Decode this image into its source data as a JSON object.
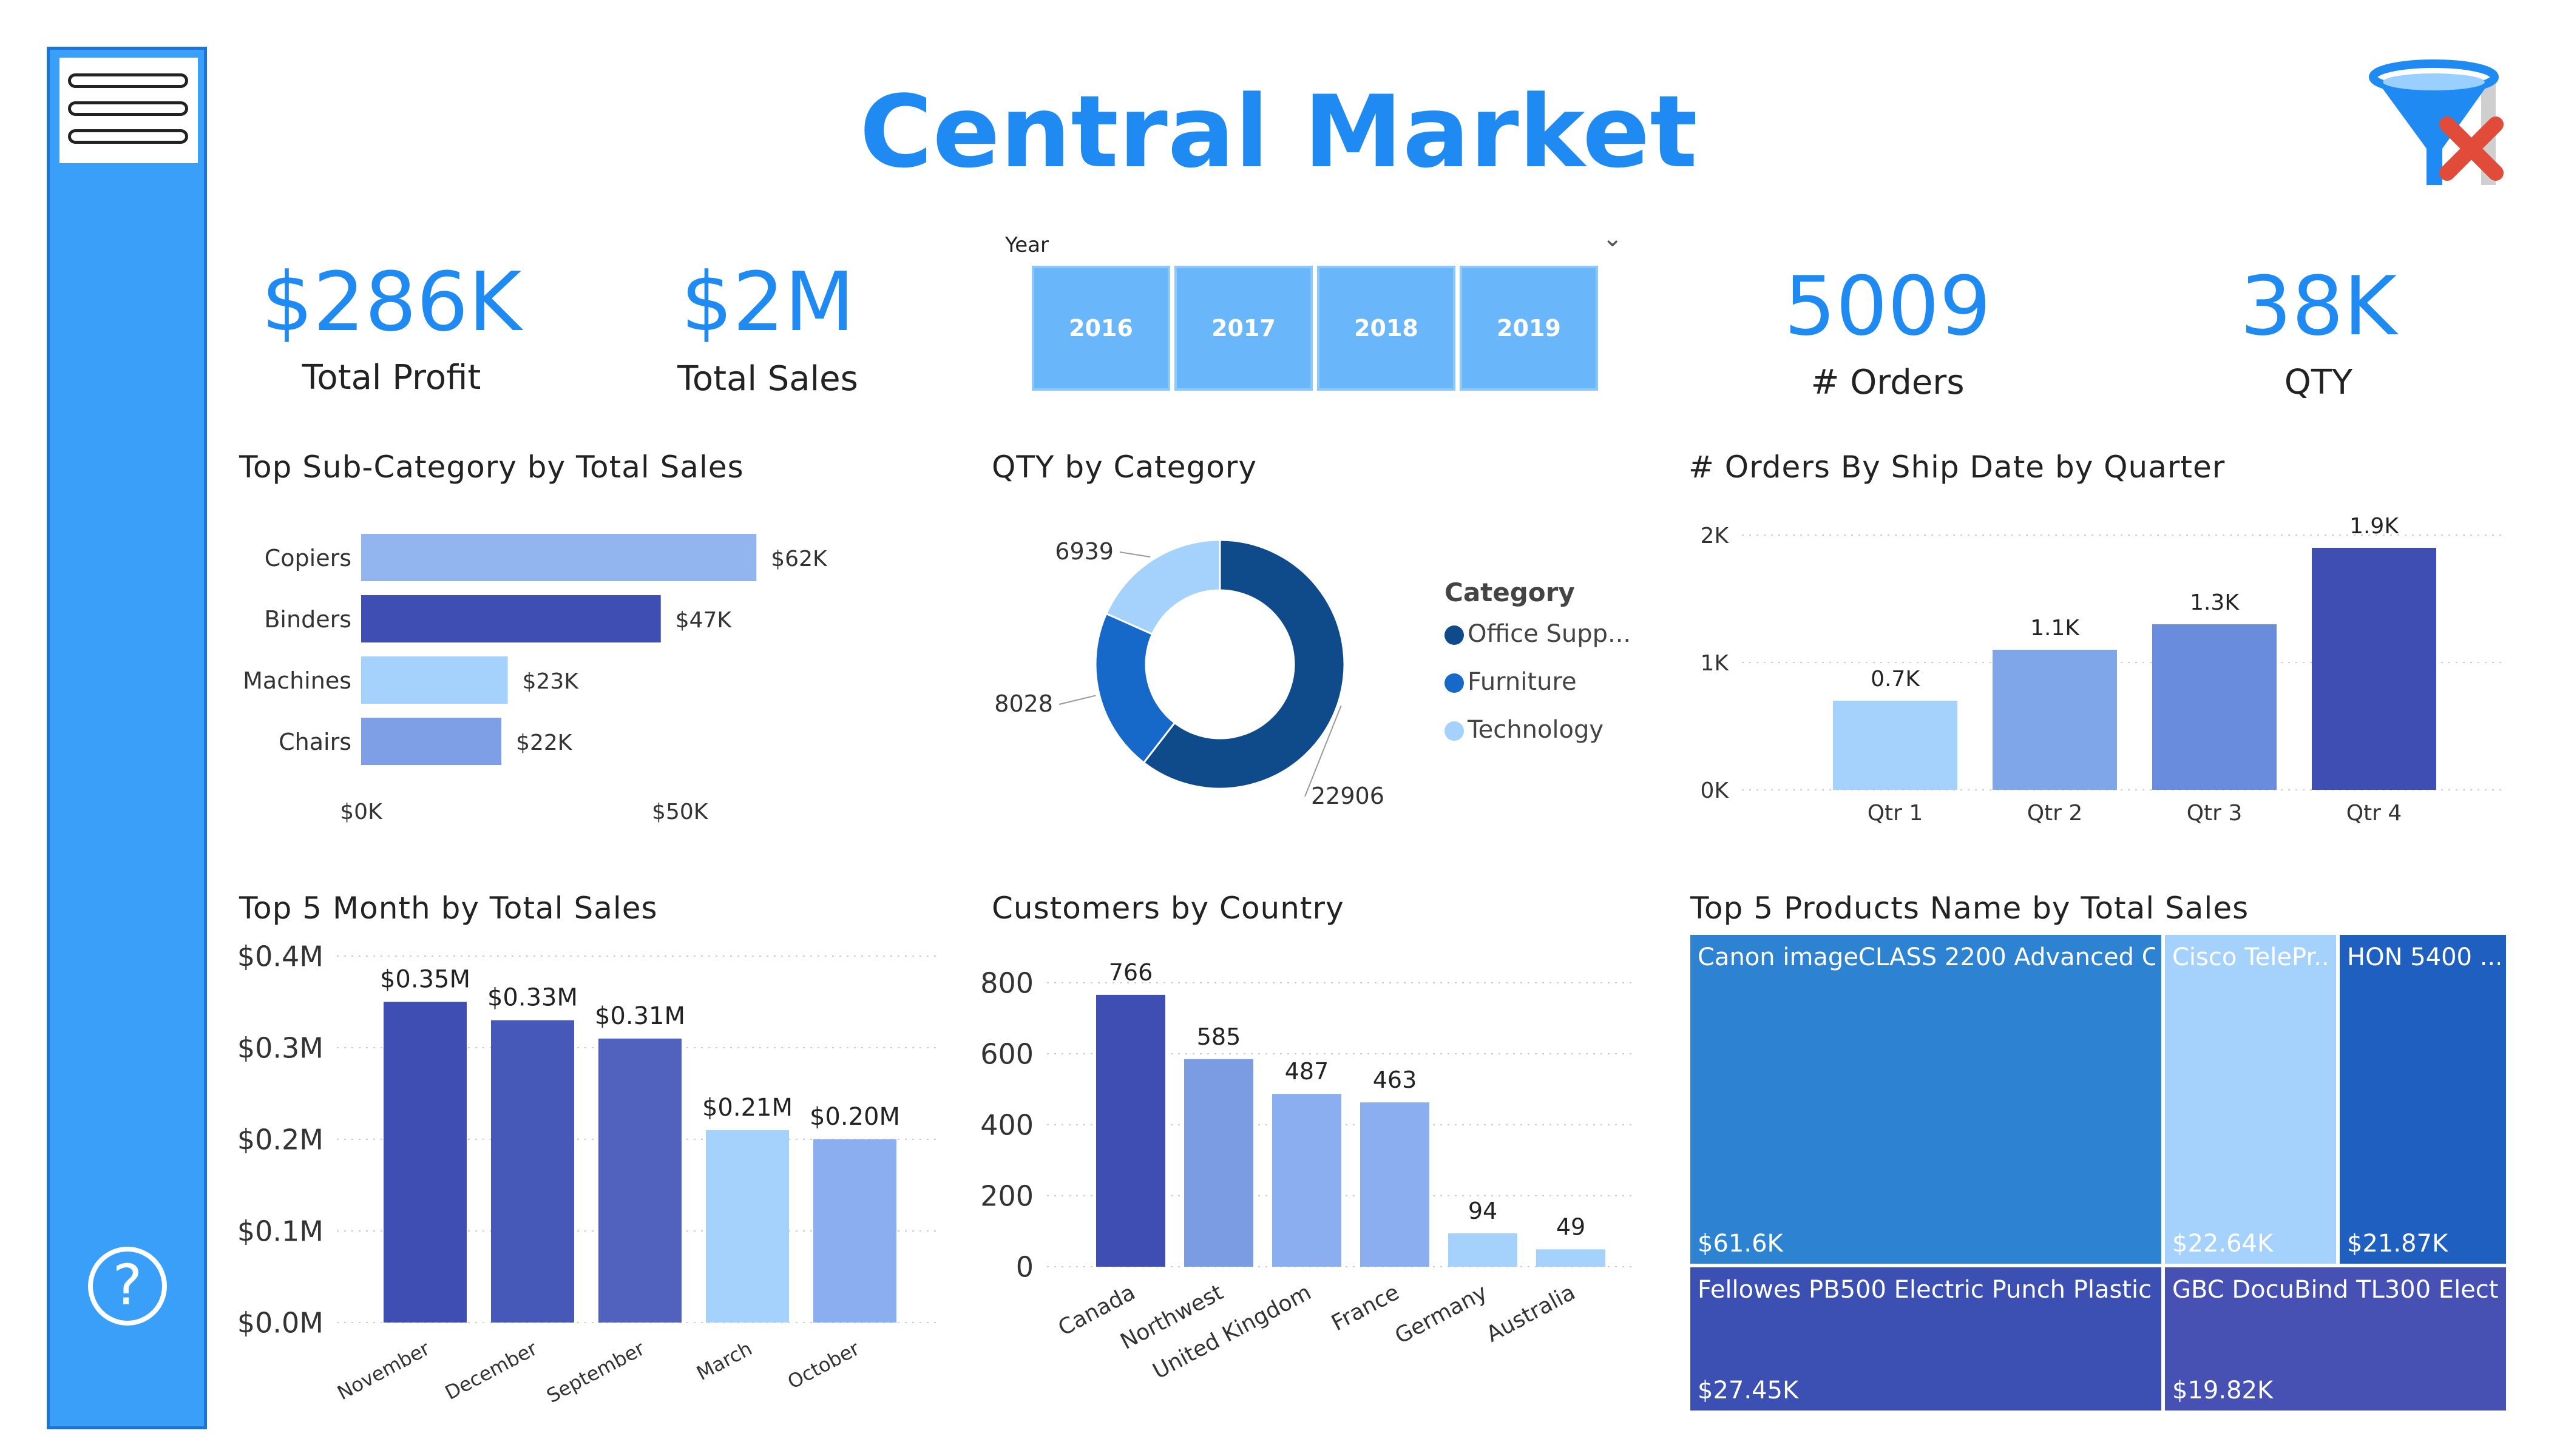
{
  "title": "Central Market",
  "kpis": {
    "profit": {
      "value": "$286K",
      "label": "Total Profit"
    },
    "sales": {
      "value": "$2M",
      "label": "Total Sales"
    },
    "orders": {
      "value": "5009",
      "label": "# Orders"
    },
    "qty": {
      "value": "38K",
      "label": "QTY"
    }
  },
  "year_slicer": {
    "label": "Year",
    "options": [
      "2016",
      "2017",
      "2018",
      "2019"
    ]
  },
  "icons": {
    "menu": "hamburger-menu-icon",
    "help": "question-circle-icon",
    "filter": "clear-filter-icon"
  },
  "colors": {
    "accent": "#1f8bf2",
    "sidebar": "#3a9ff8",
    "dark_blue": "#3f4eb2",
    "mid_blue": "#7e9ee6",
    "light_blue": "#a5d2fc"
  },
  "help_glyph": "?",
  "chart_data": [
    {
      "id": "subcategory",
      "type": "bar",
      "orientation": "horizontal",
      "title": "Top Sub-Category by Total Sales",
      "categories": [
        "Copiers",
        "Binders",
        "Machines",
        "Chairs"
      ],
      "values": [
        62,
        47,
        23,
        22
      ],
      "value_labels": [
        "$62K",
        "$47K",
        "$23K",
        "$22K"
      ],
      "colors": [
        "#92b5ef",
        "#3f4eb2",
        "#a5d2fc",
        "#7e9ee6"
      ],
      "xticks": [
        "$0K",
        "$50K"
      ],
      "xlim": [
        0,
        70
      ]
    },
    {
      "id": "qty_category",
      "type": "pie",
      "title": "QTY by Category",
      "legend_title": "Category",
      "legend_position": "right",
      "labels": [
        "Office Supp...",
        "Furniture",
        "Technology"
      ],
      "values": [
        22906,
        8028,
        6939
      ],
      "value_labels": [
        "22906",
        "8028",
        "6939"
      ],
      "colors": [
        "#0f4a8a",
        "#1668c9",
        "#a5d2fc"
      ]
    },
    {
      "id": "orders_quarter",
      "type": "bar",
      "title": "# Orders By Ship Date by Quarter",
      "categories": [
        "Qtr 1",
        "Qtr 2",
        "Qtr 3",
        "Qtr 4"
      ],
      "values": [
        0.7,
        1.1,
        1.3,
        1.9
      ],
      "value_labels": [
        "0.7K",
        "1.1K",
        "1.3K",
        "1.9K"
      ],
      "colors": [
        "#a5d2fc",
        "#7fa6e8",
        "#6a8cdc",
        "#3f4eb2"
      ],
      "yticks": [
        "0K",
        "1K",
        "2K"
      ],
      "ylim": [
        0,
        2
      ],
      "grid": true
    },
    {
      "id": "month_sales",
      "type": "bar",
      "title": "Top 5 Month by Total Sales",
      "categories": [
        "November",
        "December",
        "September",
        "March",
        "October"
      ],
      "values": [
        0.35,
        0.33,
        0.31,
        0.21,
        0.2
      ],
      "value_labels": [
        "$0.35M",
        "$0.33M",
        "$0.31M",
        "$0.21M",
        "$0.20M"
      ],
      "colors": [
        "#3f4eb2",
        "#4658b8",
        "#5062bd",
        "#a5d2fc",
        "#8aaef0"
      ],
      "yticks": [
        "$0.0M",
        "$0.1M",
        "$0.2M",
        "$0.3M",
        "$0.4M"
      ],
      "ylim": [
        0,
        0.4
      ],
      "grid": true
    },
    {
      "id": "customers_country",
      "type": "bar",
      "title": "Customers by Country",
      "categories": [
        "Canada",
        "Northwest",
        "United Kingdom",
        "France",
        "Germany",
        "Australia"
      ],
      "values": [
        766,
        585,
        487,
        463,
        94,
        49
      ],
      "value_labels": [
        "766",
        "585",
        "487",
        "463",
        "94",
        "49"
      ],
      "colors": [
        "#3f4eb2",
        "#7b9ce2",
        "#8aaef0",
        "#8aaef0",
        "#a5d2fc",
        "#a5d2fc"
      ],
      "yticks": [
        "0",
        "200",
        "400",
        "600",
        "800"
      ],
      "ylim": [
        0,
        800
      ],
      "grid": true
    },
    {
      "id": "top_products",
      "type": "treemap",
      "title": "Top 5 Products Name by Total Sales",
      "labels": [
        "Canon imageCLASS 2200 Advanced C...",
        "Cisco TelePr...",
        "HON 5400 ...",
        "Fellowes PB500 Electric Punch Plastic ...",
        "GBC DocuBind TL300 Elect..."
      ],
      "values": [
        61.6,
        22.64,
        21.87,
        27.45,
        19.82
      ],
      "value_labels": [
        "$61.6K",
        "$22.64K",
        "$21.87K",
        "$27.45K",
        "$19.82K"
      ],
      "colors": [
        "#2d82d2",
        "#a5d2fc",
        "#1f5fbf",
        "#3b50b2",
        "#4751b3"
      ]
    }
  ]
}
